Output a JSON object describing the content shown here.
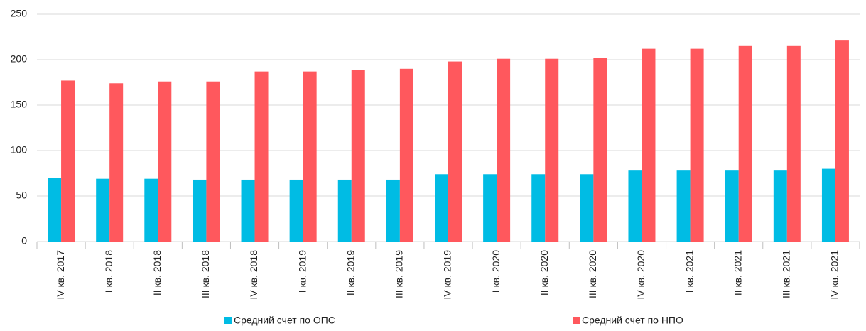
{
  "chart_data": {
    "type": "bar",
    "categories": [
      "IV кв. 2017",
      "I кв. 2018",
      "II кв. 2018",
      "III кв. 2018",
      "IV кв. 2018",
      "I кв. 2019",
      "II кв. 2019",
      "III кв. 2019",
      "IV кв. 2019",
      "I кв. 2020",
      "II кв. 2020",
      "III кв. 2020",
      "IV кв. 2020",
      "I кв. 2021",
      "II кв. 2021",
      "III кв. 2021",
      "IV кв. 2021"
    ],
    "series": [
      {
        "name": "Средний счет по ОПС",
        "color": "#00bce4",
        "values": [
          70,
          69,
          69,
          68,
          68,
          68,
          68,
          68,
          74,
          74,
          74,
          74,
          78,
          78,
          78,
          78,
          80
        ]
      },
      {
        "name": "Средний счет по НПО",
        "color": "#ff585d",
        "values": [
          177,
          174,
          176,
          176,
          187,
          187,
          189,
          190,
          198,
          201,
          201,
          202,
          212,
          212,
          215,
          215,
          221
        ]
      }
    ],
    "ylim": [
      0,
      250
    ],
    "yticks": [
      0,
      50,
      100,
      150,
      200,
      250
    ],
    "grid": true
  }
}
